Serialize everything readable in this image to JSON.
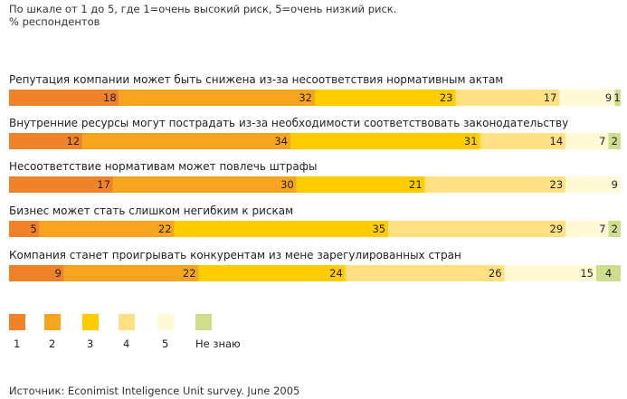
{
  "header": {
    "subtitle_line1": "По шкале от 1 до 5, где 1=очень высокий риск, 5=очень низкий риск.",
    "subtitle_line2": "% респондентов"
  },
  "source": "Источник: Econimist Inteligence Unit survey. June 2005",
  "chart_data": {
    "type": "bar",
    "orientation": "horizontal",
    "stacked": true,
    "xlim": [
      0,
      100
    ],
    "grid": false,
    "legend_position": "bottom",
    "categories": [
      "Репутация компании может быть снижена из-за несоответствия нормативным актам",
      "Внутренние ресурсы могут пострадать из-за необходимости соответствовать законодательству",
      "Несоответствие нормативам может повлечь штрафы",
      "Бизнес может стать слишком негибким к рискам",
      "Компания станет проигрывать конкурентам из мене зарегулированных стран"
    ],
    "series": [
      {
        "name": "1",
        "color": "#F0822A",
        "values": [
          18,
          12,
          17,
          5,
          9
        ]
      },
      {
        "name": "2",
        "color": "#F7A51E",
        "values": [
          32,
          34,
          30,
          22,
          22
        ]
      },
      {
        "name": "3",
        "color": "#FFCC00",
        "values": [
          23,
          31,
          21,
          35,
          24
        ]
      },
      {
        "name": "4",
        "color": "#FFE082",
        "values": [
          17,
          14,
          23,
          29,
          26
        ]
      },
      {
        "name": "5",
        "color": "#FFF9D6",
        "values": [
          9,
          7,
          9,
          7,
          15
        ]
      },
      {
        "name": "Не знаю",
        "color": "#CFDE8E",
        "values": [
          1,
          2,
          0,
          2,
          4
        ]
      }
    ]
  }
}
